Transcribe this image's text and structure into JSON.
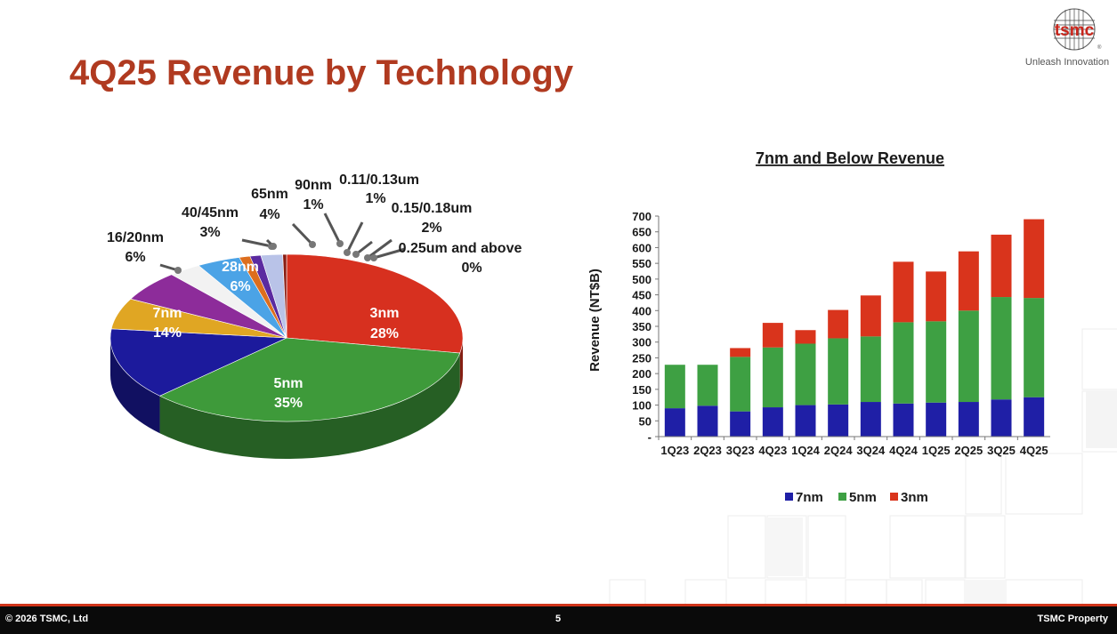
{
  "slide": {
    "title": "4Q25 Revenue by Technology",
    "page_number": "5"
  },
  "logo": {
    "text": "tsmc",
    "tagline": "Unleash Innovation"
  },
  "footer": {
    "copyright": "© 2026 TSMC, Ltd",
    "property": "TSMC Property"
  },
  "chart_data": [
    {
      "type": "pie",
      "title": "",
      "slices": [
        {
          "label": "3nm",
          "value": 28,
          "display": "28%",
          "color": "#d7301f"
        },
        {
          "label": "5nm",
          "value": 35,
          "display": "35%",
          "color": "#3e9a3a"
        },
        {
          "label": "7nm",
          "value": 14,
          "display": "14%",
          "color": "#1c1a9c"
        },
        {
          "label": "16/20nm",
          "value": 6,
          "display": "6%",
          "color": "#e0a623"
        },
        {
          "label": "28nm",
          "value": 6,
          "display": "6%",
          "color": "#8d2c9a"
        },
        {
          "label": "40/45nm",
          "value": 3,
          "display": "3%",
          "color": "#f2f2f2"
        },
        {
          "label": "65nm",
          "value": 4,
          "display": "4%",
          "color": "#4ba3e6"
        },
        {
          "label": "90nm",
          "value": 1,
          "display": "1%",
          "color": "#dd6e1e"
        },
        {
          "label": "0.11/0.13um",
          "value": 1,
          "display": "1%",
          "color": "#5b2aa0"
        },
        {
          "label": "0.15/0.18um",
          "value": 2,
          "display": "2%",
          "color": "#b9c3e8"
        },
        {
          "label": "0.25um and above",
          "value": 0,
          "display": "0%",
          "color": "#8a1c12"
        }
      ]
    },
    {
      "type": "bar",
      "stacked": true,
      "title": "7nm and Below Revenue",
      "xlabel": "",
      "ylabel": "Revenue (NT$B)",
      "ylim": [
        0,
        700
      ],
      "yticks": [
        "-",
        "50",
        "100",
        "150",
        "200",
        "250",
        "300",
        "350",
        "400",
        "450",
        "500",
        "550",
        "600",
        "650",
        "700"
      ],
      "categories": [
        "1Q23",
        "2Q23",
        "3Q23",
        "4Q23",
        "1Q24",
        "2Q24",
        "3Q24",
        "4Q24",
        "1Q25",
        "2Q25",
        "3Q25",
        "4Q25"
      ],
      "series": [
        {
          "name": "7nm",
          "color": "#1f1fa6",
          "values": [
            90,
            98,
            80,
            93,
            100,
            102,
            110,
            105,
            108,
            110,
            118,
            125
          ]
        },
        {
          "name": "5nm",
          "color": "#3ea043",
          "values": [
            138,
            130,
            173,
            190,
            195,
            210,
            208,
            258,
            258,
            290,
            325,
            315
          ]
        },
        {
          "name": "3nm",
          "color": "#d9341c",
          "values": [
            0,
            0,
            28,
            78,
            43,
            90,
            130,
            192,
            158,
            188,
            198,
            250
          ]
        }
      ],
      "legend": "bottom"
    }
  ]
}
